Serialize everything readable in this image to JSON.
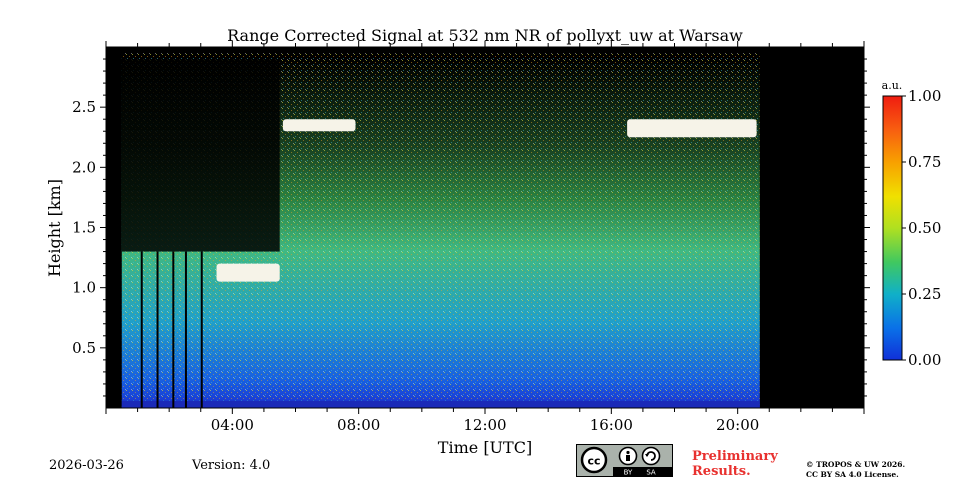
{
  "chart_data": {
    "type": "heatmap",
    "title": "Range Corrected Signal at 532 nm NR of pollyxt_uw at Warsaw",
    "xlabel": "Time [UTC]",
    "ylabel": "Height [km]",
    "xlim_hours": [
      0,
      24
    ],
    "ylim_km": [
      0,
      3.0
    ],
    "x_ticks": [
      {
        "hour": 4,
        "label": "04:00"
      },
      {
        "hour": 8,
        "label": "08:00"
      },
      {
        "hour": 12,
        "label": "12:00"
      },
      {
        "hour": 16,
        "label": "16:00"
      },
      {
        "hour": 20,
        "label": "20:00"
      }
    ],
    "y_ticks": [
      {
        "value": 0.5,
        "label": "0.5"
      },
      {
        "value": 1.0,
        "label": "1.0"
      },
      {
        "value": 1.5,
        "label": "1.5"
      },
      {
        "value": 2.0,
        "label": "2.0"
      },
      {
        "value": 2.5,
        "label": "2.5"
      }
    ],
    "colorbar": {
      "unit": "a.u.",
      "range": [
        0,
        1
      ],
      "ticks": [
        {
          "value": 0.0,
          "label": "0.00"
        },
        {
          "value": 0.25,
          "label": "0.25"
        },
        {
          "value": 0.5,
          "label": "0.50"
        },
        {
          "value": 0.75,
          "label": "0.75"
        },
        {
          "value": 1.0,
          "label": "1.00"
        }
      ]
    },
    "data_coverage_hours": [
      0.5,
      20.7
    ],
    "features": [
      {
        "name": "cloud-layer-morning",
        "time_hours": [
          5.6,
          7.9
        ],
        "height_km": [
          2.3,
          2.4
        ]
      },
      {
        "name": "cloud-layer-evening",
        "time_hours": [
          16.5,
          20.6
        ],
        "height_km": [
          2.25,
          2.4
        ]
      },
      {
        "name": "low-cloud-early",
        "time_hours": [
          3.5,
          5.5
        ],
        "height_km": [
          1.05,
          1.2
        ]
      }
    ]
  },
  "footer": {
    "date": "2026-03-26",
    "version": "Version: 4.0",
    "preliminary_line1": "Preliminary",
    "preliminary_line2": "Results.",
    "copyright_line1": "© TROPOS & UW 2026.",
    "copyright_line2": "CC BY SA 4.0 License.",
    "cc_by": "BY",
    "cc_sa": "SA",
    "cc_mark": "cc"
  },
  "colors": {
    "background_no_data": "#000000",
    "low": "#0a3cd6",
    "mid": "#c8e000",
    "high": "#f8f8f0"
  }
}
